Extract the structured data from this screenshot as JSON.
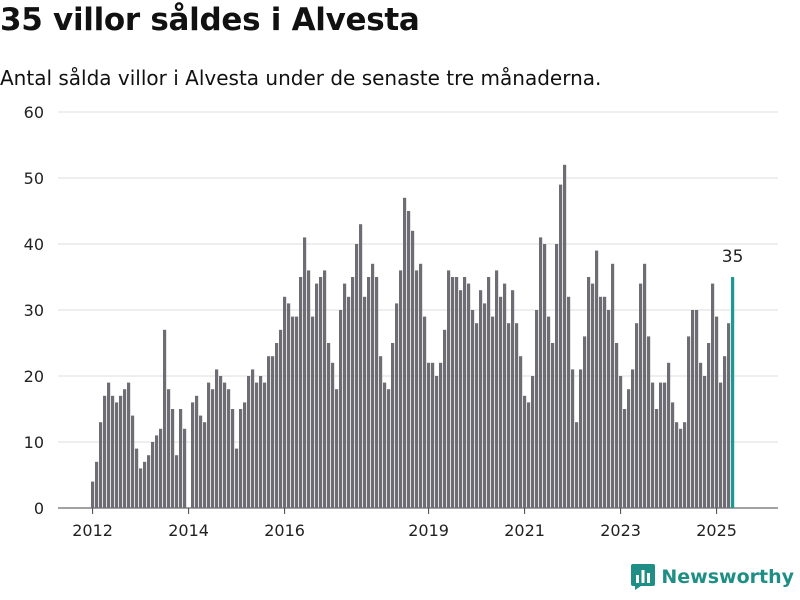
{
  "title": "35 villor såldes i Alvesta",
  "subtitle": "Antal sålda villor i Alvesta under de senaste tre månaderna.",
  "brand": "Newsworthy",
  "colors": {
    "bar": "#6e6d74",
    "highlight": "#1a9a92",
    "grid": "#dcdcdc",
    "axis": "#444444",
    "brand": "#1f8f86"
  },
  "chart_data": {
    "type": "bar",
    "title": "",
    "xlabel": "",
    "ylabel": "",
    "ylim": [
      0,
      60
    ],
    "yticks": [
      0,
      10,
      20,
      30,
      40,
      50,
      60
    ],
    "xtick_labels": [
      "2012",
      "2014",
      "2016",
      "2019",
      "2021",
      "2023",
      "2025"
    ],
    "grid": true,
    "start_month": "2012-01",
    "values": [
      4,
      7,
      13,
      17,
      19,
      17,
      16,
      17,
      18,
      19,
      14,
      9,
      6,
      7,
      8,
      10,
      11,
      12,
      27,
      18,
      15,
      8,
      15,
      12,
      0,
      16,
      17,
      14,
      13,
      19,
      18,
      21,
      20,
      19,
      18,
      15,
      9,
      15,
      16,
      20,
      21,
      19,
      20,
      19,
      23,
      23,
      25,
      27,
      32,
      31,
      29,
      29,
      35,
      41,
      36,
      29,
      34,
      35,
      36,
      25,
      22,
      18,
      30,
      34,
      32,
      35,
      40,
      43,
      32,
      35,
      37,
      35,
      23,
      19,
      18,
      25,
      31,
      36,
      47,
      45,
      42,
      36,
      37,
      29,
      22,
      22,
      20,
      22,
      27,
      36,
      35,
      35,
      33,
      35,
      34,
      30,
      28,
      33,
      31,
      35,
      29,
      36,
      32,
      34,
      28,
      33,
      28,
      23,
      17,
      16,
      20,
      30,
      41,
      40,
      29,
      25,
      40,
      49,
      52,
      32,
      21,
      13,
      21,
      26,
      35,
      34,
      39,
      32,
      32,
      30,
      37,
      25,
      20,
      15,
      18,
      21,
      28,
      34,
      37,
      26,
      19,
      15,
      19,
      19,
      22,
      16,
      13,
      12,
      13,
      26,
      30,
      30,
      22,
      20,
      25,
      34,
      29,
      19,
      23,
      28,
      35
    ],
    "highlight_last": true,
    "annotation": "35"
  }
}
